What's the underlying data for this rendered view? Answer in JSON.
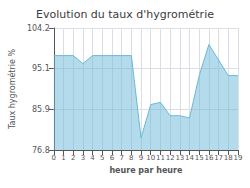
{
  "chart_data": {
    "type": "area",
    "title": "Evolution du taux d'hygrométrie",
    "x_label": "heure par heure",
    "y_label": "Taux hygrométrie %",
    "x": [
      0,
      1,
      2,
      3,
      4,
      5,
      6,
      7,
      8,
      9,
      10,
      11,
      12,
      13,
      14,
      15,
      16,
      17,
      18,
      19
    ],
    "values": [
      98.0,
      98.0,
      98.0,
      96.2,
      98.0,
      98.0,
      98.0,
      98.0,
      98.0,
      79.5,
      87.0,
      87.5,
      84.5,
      84.5,
      84.0,
      93.5,
      100.5,
      97.0,
      93.5,
      93.5
    ],
    "color": "#6ab8d8",
    "xlim": [
      0,
      19
    ],
    "xticks": [
      0,
      1,
      2,
      3,
      4,
      5,
      6,
      7,
      8,
      9,
      10,
      11,
      12,
      13,
      14,
      15,
      16,
      17,
      18,
      19
    ],
    "ylim": [
      76.8,
      104.2
    ],
    "yticks": [
      76.8,
      85.9,
      95.1,
      104.2
    ],
    "grid": true
  }
}
